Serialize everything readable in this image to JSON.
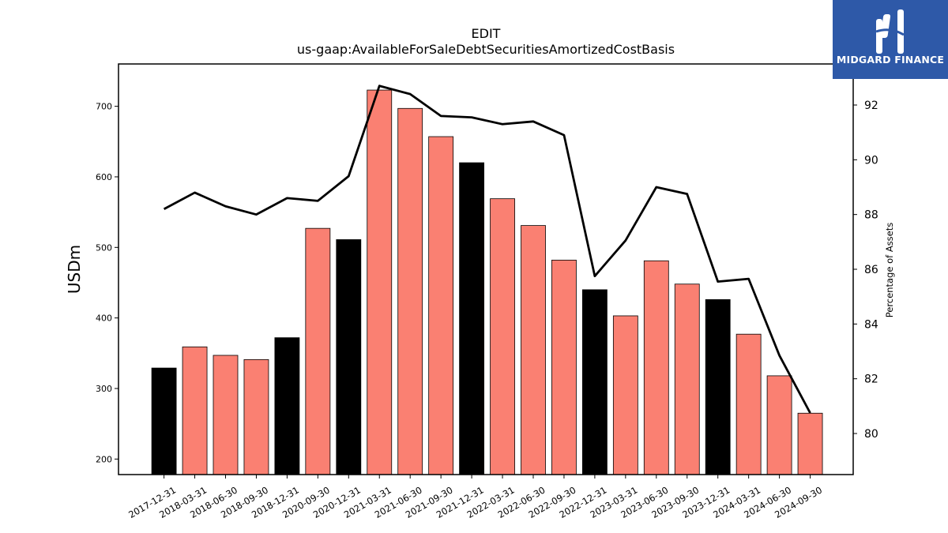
{
  "chart_data": {
    "type": "bar",
    "title": "EDIT",
    "subtitle": "us-gaap:AvailableForSaleDebtSecuritiesAmortizedCostBasis",
    "ylabel": "USDm",
    "y2label": "Percentage of Assets",
    "ylim": [
      178,
      760
    ],
    "y2lim": [
      78.5,
      93.5
    ],
    "yticks": [
      200,
      300,
      400,
      500,
      600,
      700
    ],
    "y2ticks": [
      80,
      82,
      84,
      86,
      88,
      90,
      92
    ],
    "categories": [
      "2017-12-31",
      "2018-03-31",
      "2018-06-30",
      "2018-09-30",
      "2018-12-31",
      "2020-09-30",
      "2020-12-31",
      "2021-03-31",
      "2021-06-30",
      "2021-09-30",
      "2021-12-31",
      "2022-03-31",
      "2022-06-30",
      "2022-09-30",
      "2022-12-31",
      "2023-03-31",
      "2023-06-30",
      "2023-09-30",
      "2023-12-31",
      "2024-03-31",
      "2024-06-30",
      "2024-09-30"
    ],
    "series": [
      {
        "type": "bar",
        "values": [
          329,
          359,
          347,
          341,
          372,
          527,
          511,
          723,
          697,
          657,
          620,
          569,
          531,
          482,
          440,
          403,
          481,
          448,
          426,
          377,
          318,
          265
        ],
        "colors": [
          "#000000",
          "#fa8072",
          "#fa8072",
          "#fa8072",
          "#000000",
          "#fa8072",
          "#000000",
          "#fa8072",
          "#fa8072",
          "#fa8072",
          "#000000",
          "#fa8072",
          "#fa8072",
          "#fa8072",
          "#000000",
          "#fa8072",
          "#fa8072",
          "#fa8072",
          "#000000",
          "#fa8072",
          "#fa8072",
          "#fa8072"
        ]
      },
      {
        "type": "line",
        "axis": "right",
        "color": "#000000",
        "values": [
          88.2,
          88.8,
          88.3,
          88.0,
          88.6,
          88.5,
          89.4,
          92.7,
          92.4,
          91.6,
          91.55,
          91.3,
          91.4,
          90.9,
          85.75,
          87.05,
          89.0,
          88.75,
          85.55,
          85.65,
          82.85,
          80.75
        ]
      }
    ]
  },
  "logo": {
    "text": "MIDGARD FINANCE"
  }
}
